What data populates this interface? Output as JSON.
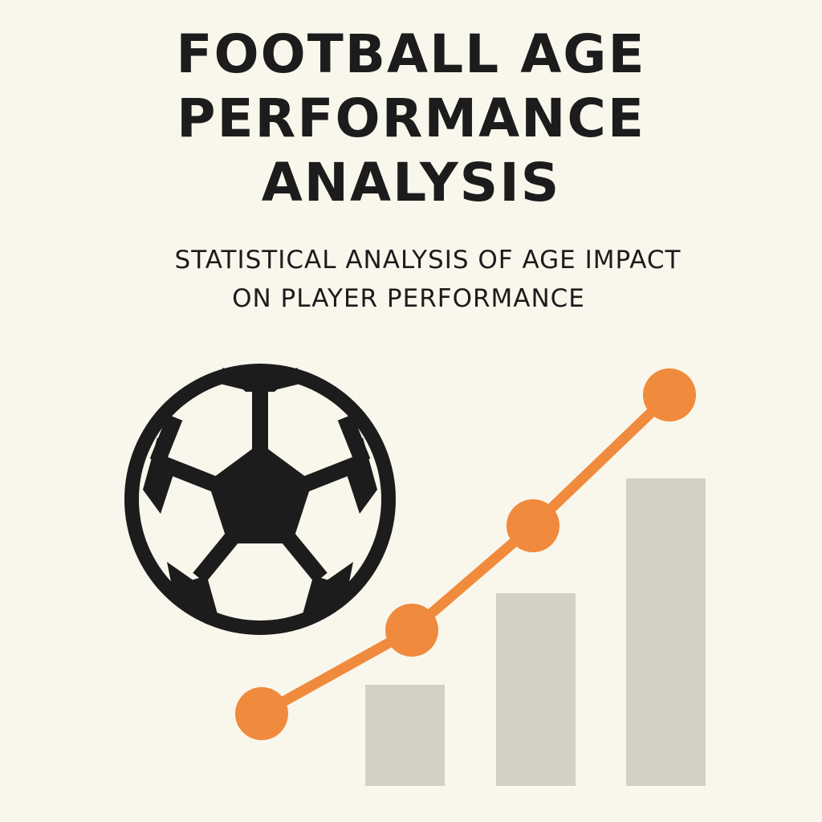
{
  "title": {
    "line1": "FOOTBALL AGE",
    "line2": "PERFORMANCE",
    "line3": "ANALYSIS"
  },
  "subtitle": {
    "line1": "STATISTICAL ANALYSIS OF AGE IMPACT",
    "line2": "ON PLAYER PERFORMANCE"
  },
  "icons": {
    "ball": "soccer-ball-icon",
    "chart": "bar-line-chart-icon"
  },
  "colors": {
    "background": "#f9f6ec",
    "text": "#1c1c1c",
    "ball": "#1c1c1c",
    "line": "#f08a3c",
    "bars": "#d3d1c5"
  },
  "chart_data": {
    "type": "bar",
    "bars": [
      1,
      2,
      3
    ],
    "line_points": [
      1,
      2,
      3,
      4
    ]
  }
}
